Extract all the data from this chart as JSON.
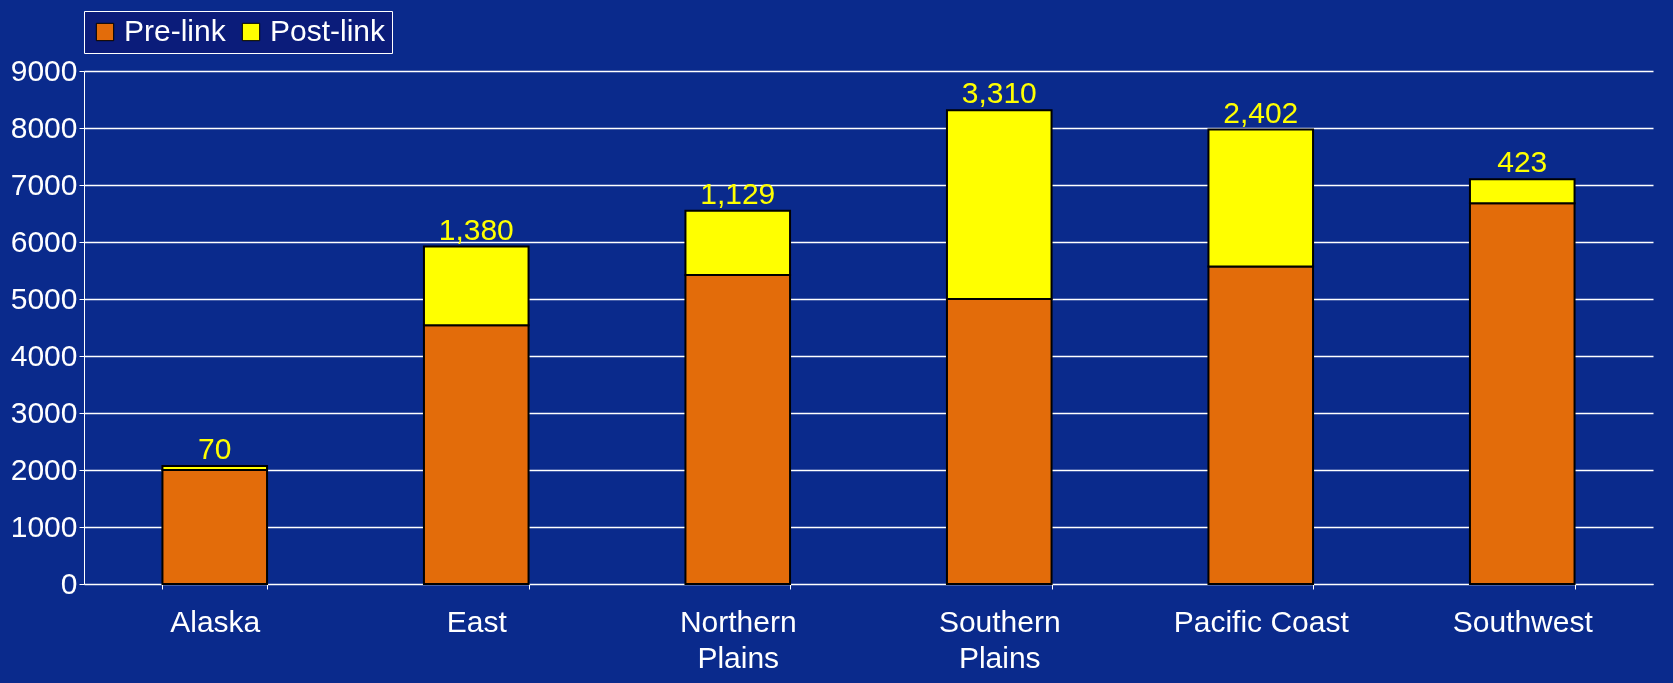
{
  "chart_data": {
    "type": "bar",
    "stacked": true,
    "categories": [
      "Alaska",
      "East",
      "Northern\nPlains",
      "Southern\nPlains",
      "Pacific Coast",
      "Southwest"
    ],
    "series": [
      {
        "name": "Pre-link",
        "color": "#e36c0a",
        "values": [
          2000,
          4540,
          5420,
          5000,
          5570,
          6680
        ]
      },
      {
        "name": "Post-link",
        "color": "#ffff00",
        "values": [
          70,
          1380,
          1129,
          3310,
          2402,
          423
        ],
        "value_labels": [
          "70",
          "1,380",
          "1,129",
          "3,310",
          "2,402",
          "423"
        ]
      }
    ],
    "ylim": [
      0,
      9000
    ],
    "yticks": [
      0,
      1000,
      2000,
      3000,
      4000,
      5000,
      6000,
      7000,
      8000,
      9000
    ],
    "grid": "y",
    "legend": "top"
  }
}
